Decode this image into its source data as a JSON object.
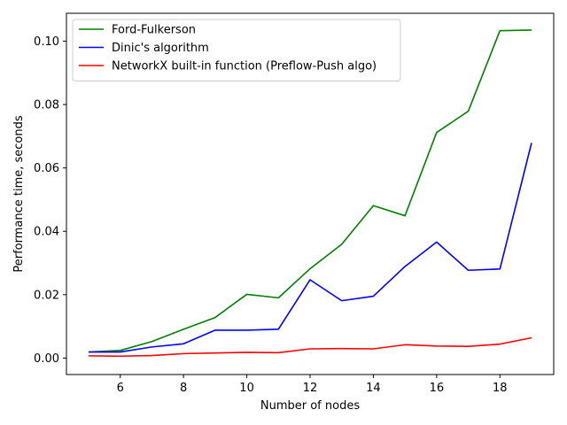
{
  "chart_data": {
    "type": "line",
    "title": "",
    "xlabel": "Number of nodes",
    "ylabel": "Performance time, seconds",
    "x": [
      5,
      6,
      7,
      8,
      9,
      10,
      11,
      12,
      13,
      14,
      15,
      16,
      17,
      18,
      19
    ],
    "xlim": [
      4.3,
      19.7
    ],
    "ylim": [
      -0.0052,
      0.1088
    ],
    "xticks": [
      6,
      8,
      10,
      12,
      14,
      16,
      18
    ],
    "xtick_labels": [
      "6",
      "8",
      "10",
      "12",
      "14",
      "16",
      "18"
    ],
    "yticks": [
      0.0,
      0.02,
      0.04,
      0.06,
      0.08,
      0.1
    ],
    "ytick_labels": [
      "0.00",
      "0.02",
      "0.04",
      "0.06",
      "0.08",
      "0.10"
    ],
    "grid": false,
    "legend_position": "top-left",
    "series": [
      {
        "name": "Ford-Fulkerson",
        "color": "#008000",
        "values": [
          0.0019,
          0.0024,
          0.0052,
          0.0091,
          0.0128,
          0.0201,
          0.019,
          0.0282,
          0.0359,
          0.0481,
          0.0449,
          0.0712,
          0.0779,
          0.1033,
          0.1035
        ]
      },
      {
        "name": "Dinic's algorithm",
        "color": "#0000ff",
        "values": [
          0.0019,
          0.0019,
          0.0035,
          0.0045,
          0.0088,
          0.0088,
          0.0091,
          0.0247,
          0.0181,
          0.0195,
          0.0289,
          0.0366,
          0.0277,
          0.0281,
          0.0679
        ]
      },
      {
        "name": "NetworkX built-in function (Preflow-Push algo)",
        "color": "#ff0000",
        "values": [
          0.0007,
          0.0006,
          0.0008,
          0.0014,
          0.0016,
          0.0018,
          0.0017,
          0.0029,
          0.003,
          0.0029,
          0.0042,
          0.0038,
          0.0037,
          0.0044,
          0.0064
        ]
      }
    ]
  }
}
